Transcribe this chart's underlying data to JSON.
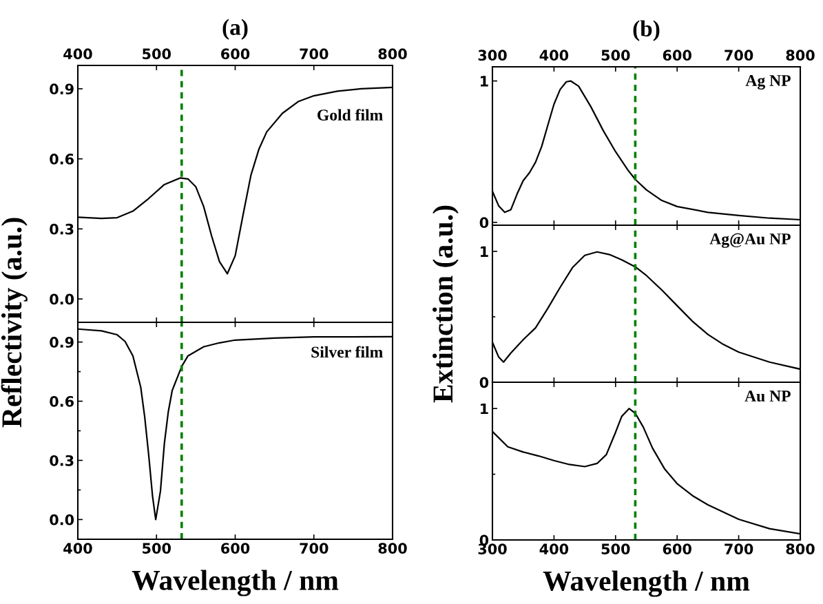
{
  "chart_data": [
    {
      "type": "line",
      "title": "(a)",
      "ylabel": "Reflectivity (a.u.)",
      "annotations": [
        "Gold film"
      ],
      "xlim": [
        400,
        800
      ],
      "x2lim": [
        400,
        800
      ],
      "x2ticks": [
        400,
        500,
        600,
        700,
        800
      ],
      "ylim": [
        -0.1,
        1.0
      ],
      "yticks": [
        {
          "value": 0,
          "label": "0.0"
        },
        0.3,
        0.6,
        0.9
      ],
      "tick_labels": "y",
      "grid": false,
      "legend": false,
      "ref_lines": [
        {
          "axis": "x",
          "value": 532,
          "color": "#008000",
          "line_style": "dashed"
        }
      ],
      "series": [
        {
          "color": "#000000",
          "x": [
            400,
            430,
            450,
            470,
            490,
            510,
            530,
            540,
            550,
            560,
            570,
            580,
            590,
            600,
            610,
            620,
            630,
            640,
            660,
            680,
            700,
            730,
            760,
            800
          ],
          "values": [
            0.35,
            0.345,
            0.348,
            0.376,
            0.43,
            0.49,
            0.518,
            0.514,
            0.48,
            0.395,
            0.27,
            0.16,
            0.108,
            0.185,
            0.36,
            0.53,
            0.64,
            0.715,
            0.795,
            0.845,
            0.87,
            0.89,
            0.9,
            0.906
          ]
        }
      ]
    },
    {
      "type": "line",
      "xlabel": "Wavelength / nm",
      "annotations": [
        "Silver film"
      ],
      "xlim": [
        400,
        800
      ],
      "xticks": [
        400,
        500,
        600,
        700,
        800
      ],
      "ylim": [
        -0.1,
        1.0
      ],
      "yticks": [
        {
          "value": 0,
          "label": "0.0"
        },
        0.3,
        0.6,
        0.9
      ],
      "grid": false,
      "legend": false,
      "ref_lines": [
        {
          "axis": "x",
          "value": 532,
          "color": "#008000",
          "line_style": "dashed"
        }
      ],
      "series": [
        {
          "color": "#000000",
          "x": [
            400,
            430,
            450,
            460,
            470,
            480,
            485,
            490,
            495,
            499,
            505,
            510,
            515,
            520,
            532,
            540,
            560,
            580,
            600,
            650,
            700,
            800
          ],
          "values": [
            0.966,
            0.957,
            0.937,
            0.903,
            0.83,
            0.67,
            0.52,
            0.33,
            0.117,
            0.0,
            0.144,
            0.386,
            0.547,
            0.655,
            0.776,
            0.83,
            0.876,
            0.896,
            0.91,
            0.92,
            0.926,
            0.927
          ]
        }
      ]
    },
    {
      "type": "line",
      "title": "(b)",
      "annotations": [
        "Ag NP"
      ],
      "xlim": [
        300,
        800
      ],
      "x2lim": [
        300,
        800
      ],
      "x2ticks": [
        300,
        400,
        500,
        600,
        700,
        800
      ],
      "ylim": [
        -0.02,
        1.1
      ],
      "yticks": [
        0,
        1
      ],
      "tick_labels": "y",
      "grid": false,
      "legend": false,
      "ref_lines": [
        {
          "axis": "x",
          "value": 532,
          "color": "#008000",
          "line_style": "dashed"
        }
      ],
      "series": [
        {
          "color": "#000000",
          "x": [
            300,
            310,
            320,
            330,
            340,
            350,
            360,
            370,
            380,
            390,
            400,
            410,
            420,
            427,
            440,
            460,
            480,
            500,
            520,
            532,
            550,
            575,
            600,
            650,
            700,
            750,
            800
          ],
          "values": [
            0.22,
            0.118,
            0.071,
            0.09,
            0.2,
            0.295,
            0.35,
            0.425,
            0.537,
            0.687,
            0.836,
            0.94,
            0.994,
            1.0,
            0.963,
            0.817,
            0.649,
            0.5,
            0.37,
            0.304,
            0.23,
            0.155,
            0.112,
            0.071,
            0.049,
            0.03,
            0.019
          ]
        }
      ]
    },
    {
      "type": "line",
      "ylabel": "Extinction (a.u.)",
      "annotations": [
        "Ag@Au NP"
      ],
      "xlim": [
        300,
        800
      ],
      "ylim": [
        0,
        1.2
      ],
      "yticks": [
        0,
        1
      ],
      "tick_labels": "y",
      "grid": false,
      "legend": false,
      "ref_lines": [
        {
          "axis": "x",
          "value": 532,
          "color": "#008000",
          "line_style": "dashed"
        }
      ],
      "series": [
        {
          "color": "#000000",
          "x": [
            300,
            310,
            318,
            330,
            350,
            370,
            390,
            410,
            430,
            450,
            470,
            490,
            510,
            532,
            550,
            575,
            600,
            625,
            650,
            675,
            700,
            750,
            800
          ],
          "values": [
            0.305,
            0.194,
            0.154,
            0.224,
            0.325,
            0.415,
            0.565,
            0.725,
            0.876,
            0.97,
            0.996,
            0.976,
            0.936,
            0.882,
            0.816,
            0.705,
            0.585,
            0.465,
            0.365,
            0.289,
            0.23,
            0.154,
            0.1
          ]
        }
      ]
    },
    {
      "type": "line",
      "xlabel": "Wavelength / nm",
      "annotations": [
        "Au NP"
      ],
      "xlim": [
        300,
        800
      ],
      "xticks": [
        300,
        400,
        500,
        600,
        700,
        800
      ],
      "ylim": [
        0,
        1.2
      ],
      "yticks": [
        0,
        1
      ],
      "grid": false,
      "legend": false,
      "ref_lines": [
        {
          "axis": "x",
          "value": 532,
          "color": "#008000",
          "line_style": "dashed"
        }
      ],
      "series": [
        {
          "color": "#000000",
          "x": [
            300,
            325,
            350,
            375,
            400,
            425,
            450,
            470,
            485,
            500,
            510,
            522,
            532,
            545,
            560,
            580,
            600,
            625,
            650,
            700,
            750,
            800
          ],
          "values": [
            0.825,
            0.709,
            0.669,
            0.639,
            0.604,
            0.574,
            0.558,
            0.582,
            0.649,
            0.819,
            0.94,
            1.0,
            0.964,
            0.859,
            0.699,
            0.538,
            0.428,
            0.337,
            0.267,
            0.157,
            0.086,
            0.046
          ]
        }
      ]
    }
  ]
}
